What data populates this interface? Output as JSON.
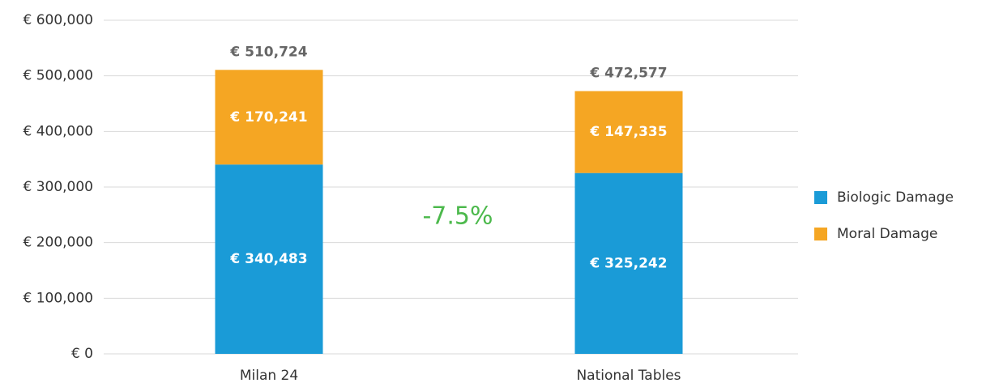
{
  "chart_data": {
    "type": "stacked_bar",
    "categories": [
      "Milan 24",
      "National Tables"
    ],
    "series": [
      {
        "name": "Biologic Damage",
        "color": "#1a9bd7",
        "values": [
          340483,
          325242
        ],
        "value_labels": [
          "€ 340,483",
          "€ 325,242"
        ]
      },
      {
        "name": "Moral Damage",
        "color": "#f5a623",
        "values": [
          170241,
          147335
        ],
        "value_labels": [
          "€ 170,241",
          "€ 147,335"
        ]
      }
    ],
    "totals": {
      "values": [
        510724,
        472577
      ],
      "value_labels": [
        "€ 510,724",
        "€ 472,577"
      ]
    },
    "annotation": "-7.5%",
    "ylim": [
      0,
      600000
    ],
    "yticks": [
      {
        "value": 0,
        "label": "€ 0"
      },
      {
        "value": 100000,
        "label": "€ 100,000"
      },
      {
        "value": 200000,
        "label": "€ 200,000"
      },
      {
        "value": 300000,
        "label": "€ 300,000"
      },
      {
        "value": 400000,
        "label": "€ 400,000"
      },
      {
        "value": 500000,
        "label": "€ 500,000"
      },
      {
        "value": 600000,
        "label": "€ 600,000"
      }
    ],
    "grid": true,
    "legend": "right"
  }
}
